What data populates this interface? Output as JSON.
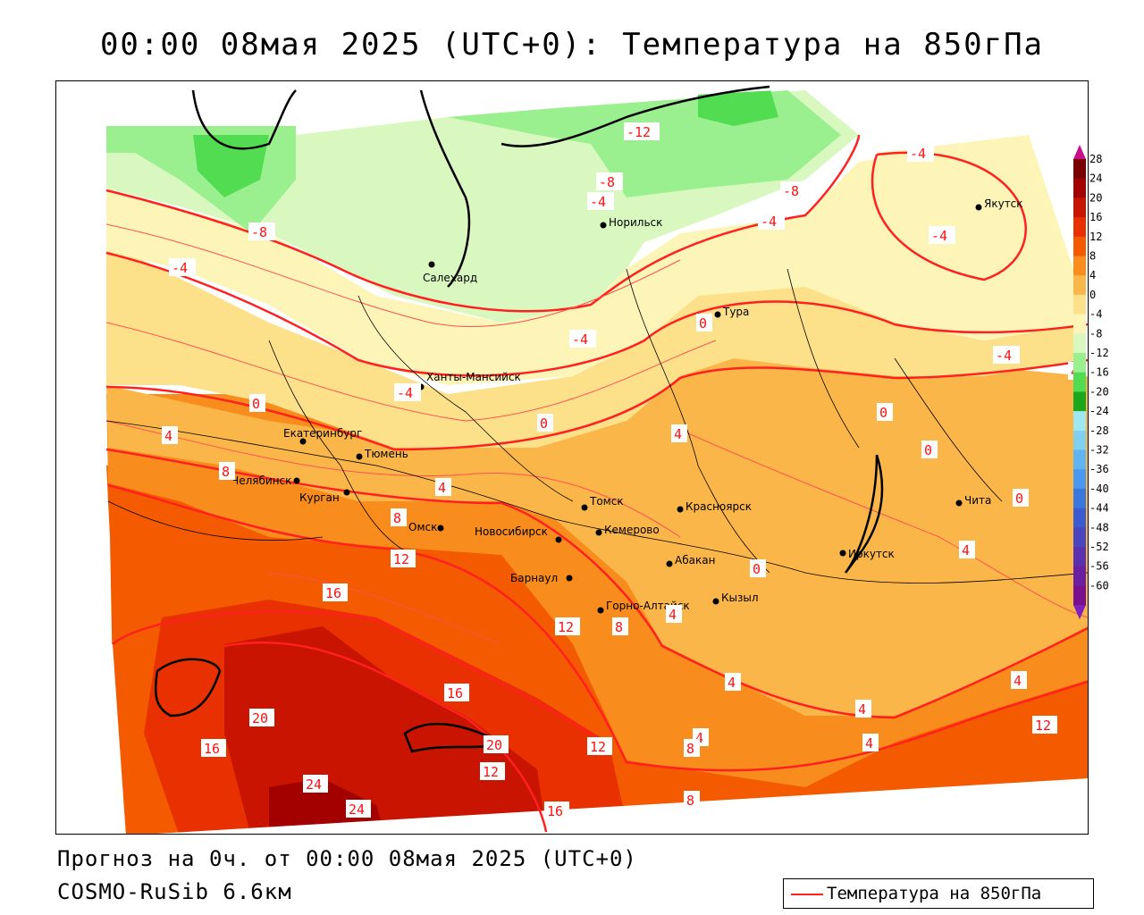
{
  "title": "00:00 08мая 2025 (UTC+0): Температура на 850гПа",
  "footer": {
    "forecast": "Прогноз на 0ч. от 00:00 08мая 2025 (UTC+0)",
    "model": "COSMO-RuSib 6.6км"
  },
  "legend": {
    "label": "Температура на 850гПа",
    "line_color": "#ff2020"
  },
  "color_scale": {
    "labels": [
      "28",
      "24",
      "20",
      "16",
      "12",
      "8",
      "4",
      "0",
      "-4",
      "-8",
      "-12",
      "-16",
      "-20",
      "-24",
      "-28",
      "-32",
      "-36",
      "-40",
      "-44",
      "-48",
      "-52",
      "-56",
      "-60"
    ],
    "colors": [
      "#7a0000",
      "#a30000",
      "#c81400",
      "#e83000",
      "#f45a00",
      "#f88c1c",
      "#fbb64a",
      "#fde08a",
      "#fdf5b8",
      "#d8f8c0",
      "#9af08e",
      "#52dc52",
      "#1ca81c",
      "#a0e8f0",
      "#80d0f0",
      "#60b4f0",
      "#4898f0",
      "#3a78e0",
      "#3a5cd0",
      "#4a46c0",
      "#5a32b0",
      "#6a20a0",
      "#7a1090"
    ]
  },
  "cities": [
    {
      "name": "Якутск"
    },
    {
      "name": "Норильск"
    },
    {
      "name": "Салехард"
    },
    {
      "name": "Тура"
    },
    {
      "name": "Ханты-Мансийск"
    },
    {
      "name": "Екатеринбург"
    },
    {
      "name": "Тюмень"
    },
    {
      "name": "Челябинск"
    },
    {
      "name": "Курган"
    },
    {
      "name": "Омск"
    },
    {
      "name": "Новосибирск"
    },
    {
      "name": "Томск"
    },
    {
      "name": "Кемерово"
    },
    {
      "name": "Красноярск"
    },
    {
      "name": "Барнаул"
    },
    {
      "name": "Абакан"
    },
    {
      "name": "Иркутск"
    },
    {
      "name": "Чита"
    },
    {
      "name": "Горно-Алтайск"
    },
    {
      "name": "Кызыл"
    }
  ],
  "isotherm_labels": [
    "-12",
    "-8",
    "-8",
    "-8",
    "-4",
    "-4",
    "-4",
    "-4",
    "-4",
    "-4",
    "-4",
    "-4",
    "0",
    "0",
    "0",
    "0",
    "0",
    "0",
    "0",
    "4",
    "4",
    "4",
    "4",
    "4",
    "4",
    "4",
    "4",
    "4",
    "4",
    "8",
    "8",
    "8",
    "8",
    "8",
    "12",
    "12",
    "12",
    "12",
    "12",
    "16",
    "16",
    "16",
    "16",
    "20",
    "20",
    "24",
    "24",
    "4"
  ]
}
